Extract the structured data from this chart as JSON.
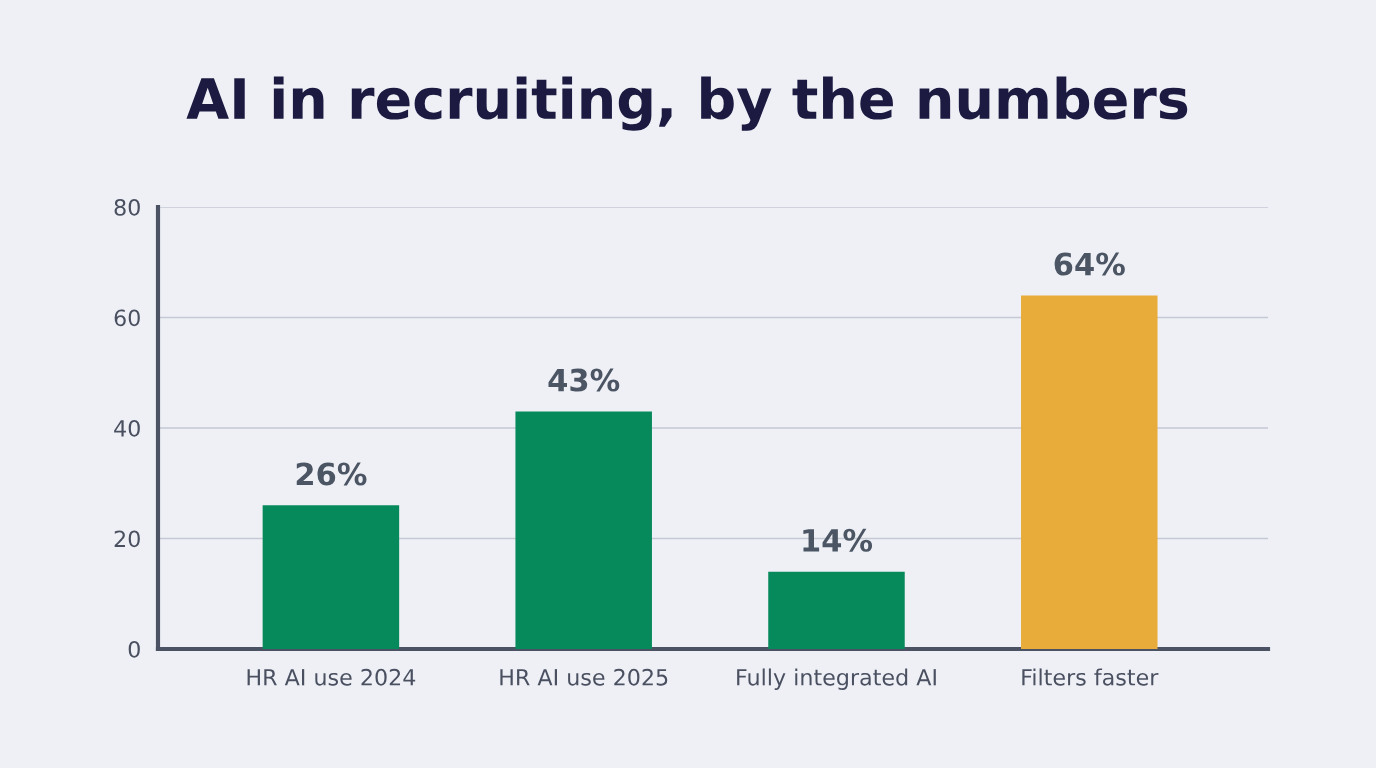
{
  "chart_data": {
    "type": "bar",
    "title": "AI in recruiting, by the numbers",
    "categories": [
      "HR AI use 2024",
      "HR AI use 2025",
      "Fully integrated AI",
      "Filters faster"
    ],
    "values": [
      26,
      43,
      14,
      64
    ],
    "colors": [
      "#078a5b",
      "#078a5b",
      "#078a5b",
      "#e8ac3a"
    ],
    "value_labels": [
      "26%",
      "43%",
      "14%",
      "64%"
    ],
    "ylim": [
      0,
      80
    ],
    "yticks": [
      0,
      20,
      40,
      60,
      80
    ],
    "grid": "y",
    "legend": false
  }
}
